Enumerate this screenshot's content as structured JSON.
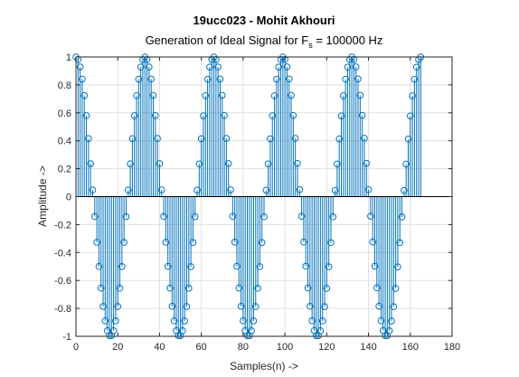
{
  "chart_data": {
    "type": "stem",
    "title": "19ucc023 - Mohit Akhouri",
    "subtitle_parts": [
      "Generation of Ideal Signal for F",
      "s",
      " = 100000 Hz"
    ],
    "xlabel": "Samples(n) ->",
    "ylabel": "Amplitude ->",
    "xlim": [
      0,
      180
    ],
    "ylim": [
      -1,
      1
    ],
    "xticks": [
      0,
      20,
      40,
      60,
      80,
      100,
      120,
      140,
      160,
      180
    ],
    "yticks": [
      -1,
      -0.8,
      -0.6,
      -0.4,
      -0.2,
      0,
      0.2,
      0.4,
      0.6,
      0.8,
      1
    ],
    "ytick_labels": [
      "-1",
      "-0.8",
      "-0.6",
      "-0.4",
      "-0.2",
      "0",
      "0.2",
      "0.4",
      "0.6",
      "0.8",
      "1"
    ],
    "grid": true,
    "signal": {
      "function": "cos",
      "cycles_per_sample": 0.0303,
      "n_start": 0,
      "n_end": 165
    },
    "colors": {
      "series": "#0072BD",
      "grid": "#DFDFDF",
      "axis": "#262626",
      "baseline": "#000000"
    }
  }
}
